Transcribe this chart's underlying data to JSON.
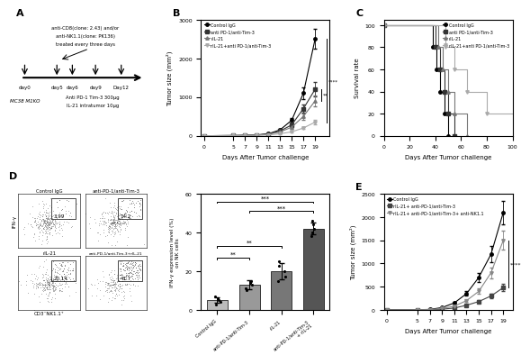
{
  "panel_A": {
    "timeline_days": [
      "day0",
      "day5",
      "day6",
      "day9",
      "Day12"
    ],
    "cell_line": "MC38 M1KO",
    "treatment": "Anti PD-1 Tim-3 300μg\nIL-21 intratumor 10μg",
    "depletion": "anti-CD8(clone: 2.43) and/or\nanti-NK1.1(clone: PK136)\ntreated every three days"
  },
  "panel_B": {
    "xlabel": "Days After Tumor challenge",
    "ylabel": "Tumor size (mm²)",
    "ylim": [
      0,
      3000
    ],
    "yticks": [
      0,
      1000,
      2000,
      3000
    ],
    "days": [
      0,
      5,
      7,
      9,
      11,
      13,
      15,
      17,
      19
    ],
    "series": {
      "Control IgG": {
        "mean": [
          0,
          5,
          10,
          20,
          50,
          150,
          400,
          1100,
          2500
        ],
        "sem": [
          0,
          2,
          3,
          5,
          10,
          30,
          60,
          150,
          250
        ],
        "marker": "o",
        "color": "#000000",
        "linestyle": "-"
      },
      "anti PD-1/anti-Tim-3": {
        "mean": [
          0,
          5,
          10,
          18,
          45,
          120,
          280,
          700,
          1200
        ],
        "sem": [
          0,
          2,
          3,
          5,
          8,
          25,
          50,
          100,
          180
        ],
        "marker": "s",
        "color": "#333333",
        "linestyle": "-"
      },
      "rIL-21": {
        "mean": [
          0,
          5,
          8,
          15,
          35,
          100,
          220,
          500,
          900
        ],
        "sem": [
          0,
          2,
          2,
          4,
          7,
          20,
          40,
          80,
          130
        ],
        "marker": "^",
        "color": "#777777",
        "linestyle": "-"
      },
      "rIL-21+anti PD-1/anti-Tim-3": {
        "mean": [
          0,
          4,
          6,
          10,
          20,
          50,
          100,
          200,
          350
        ],
        "sem": [
          0,
          1,
          2,
          3,
          5,
          10,
          20,
          30,
          60
        ],
        "marker": "v",
        "color": "#aaaaaa",
        "linestyle": "-"
      }
    }
  },
  "panel_C": {
    "xlabel": "Days After Tumor challenge",
    "ylabel": "Survival rate",
    "ylim": [
      0,
      105
    ],
    "xlim": [
      0,
      100
    ],
    "xticks": [
      0,
      20,
      40,
      60,
      80,
      100
    ],
    "yticks": [
      0,
      20,
      40,
      60,
      80,
      100
    ],
    "series": {
      "Control IgG": {
        "times": [
          0,
          38,
          38,
          41,
          41,
          44,
          44,
          47,
          47,
          50,
          50
        ],
        "survival": [
          100,
          100,
          80,
          80,
          60,
          60,
          40,
          40,
          20,
          20,
          0
        ],
        "marker": "o",
        "color": "#000000"
      },
      "anti PD-1/anti-Tim-3": {
        "times": [
          0,
          40,
          40,
          44,
          44,
          47,
          47,
          50,
          50,
          55,
          55
        ],
        "survival": [
          100,
          100,
          80,
          80,
          60,
          60,
          40,
          40,
          20,
          20,
          0
        ],
        "marker": "s",
        "color": "#333333"
      },
      "rIL-21": {
        "times": [
          0,
          42,
          42,
          46,
          46,
          50,
          50,
          55,
          55,
          65,
          65
        ],
        "survival": [
          100,
          100,
          80,
          80,
          60,
          60,
          40,
          40,
          20,
          20,
          0
        ],
        "marker": "^",
        "color": "#777777"
      },
      "rIL-21+anti PD-1/anti-Tim-3": {
        "times": [
          0,
          48,
          48,
          55,
          55,
          65,
          65,
          80,
          80,
          100
        ],
        "survival": [
          100,
          100,
          80,
          80,
          60,
          60,
          40,
          40,
          20,
          20
        ],
        "marker": "v",
        "color": "#aaaaaa"
      }
    }
  },
  "panel_D_bar": {
    "ylabel": "IFN-γ expression level (%)\non NK cells",
    "ylim": [
      0,
      60
    ],
    "yticks": [
      0,
      20,
      40,
      60
    ],
    "categories": [
      "Control IgG",
      "anti-PD-1/anti-Tim-3",
      "rIL-21",
      "anti-PD-1/anti-Tim-3\n+ rIL-21"
    ],
    "means": [
      5,
      13,
      20,
      42
    ],
    "sems": [
      1.5,
      2.5,
      4,
      3
    ],
    "bar_colors": [
      "#bbbbbb",
      "#999999",
      "#777777",
      "#555555"
    ],
    "dot_data": [
      [
        3,
        4,
        5,
        6,
        7
      ],
      [
        10,
        11,
        13,
        14,
        15
      ],
      [
        15,
        17,
        20,
        23,
        25
      ],
      [
        38,
        40,
        42,
        44,
        46
      ]
    ],
    "sig_lines": [
      {
        "x1": 0,
        "x2": 1,
        "y": 27,
        "label": "**"
      },
      {
        "x1": 0,
        "x2": 2,
        "y": 33,
        "label": "**"
      },
      {
        "x1": 1,
        "x2": 3,
        "y": 51,
        "label": "***"
      },
      {
        "x1": 0,
        "x2": 3,
        "y": 56,
        "label": "***"
      }
    ]
  },
  "panel_D_flow": {
    "percentages": [
      "3.99",
      "14.2",
      "20.14",
      "41.7"
    ],
    "row_labels": [
      "Control IgG",
      "rIL-21"
    ],
    "col_labels": [
      "",
      "anti-PD-1/anti-Tim-3",
      "",
      "anti-PD-1/anti-Tim-3+rIL-21"
    ]
  },
  "panel_E": {
    "xlabel": "Days After Tumor challenge",
    "ylabel": "Tumor size (mm²)",
    "ylim": [
      0,
      2500
    ],
    "yticks": [
      0,
      500,
      1000,
      1500,
      2000,
      2500
    ],
    "days": [
      0,
      5,
      7,
      9,
      11,
      13,
      15,
      17,
      19
    ],
    "series": {
      "Control IgG": {
        "mean": [
          0,
          5,
          10,
          50,
          150,
          350,
          700,
          1200,
          2100
        ],
        "sem": [
          0,
          2,
          3,
          10,
          25,
          50,
          100,
          180,
          250
        ],
        "marker": "o",
        "color": "#000000",
        "linestyle": "-"
      },
      "rIL-21+ anti-PD-1/anti-Tim-3": {
        "mean": [
          0,
          4,
          6,
          15,
          40,
          100,
          180,
          300,
          480
        ],
        "sem": [
          0,
          1,
          2,
          4,
          8,
          20,
          30,
          50,
          80
        ],
        "marker": "s",
        "color": "#444444",
        "linestyle": "-"
      },
      "rIL-21+ anti-PD-1/anti-Tim-3+ anti-NK1.1": {
        "mean": [
          0,
          4,
          8,
          30,
          80,
          200,
          400,
          800,
          1500
        ],
        "sem": [
          0,
          1,
          2,
          6,
          15,
          35,
          60,
          120,
          200
        ],
        "marker": "v",
        "color": "#888888",
        "linestyle": "-"
      }
    },
    "sig_label": "****",
    "sig_y1": 480,
    "sig_y2": 1500
  }
}
